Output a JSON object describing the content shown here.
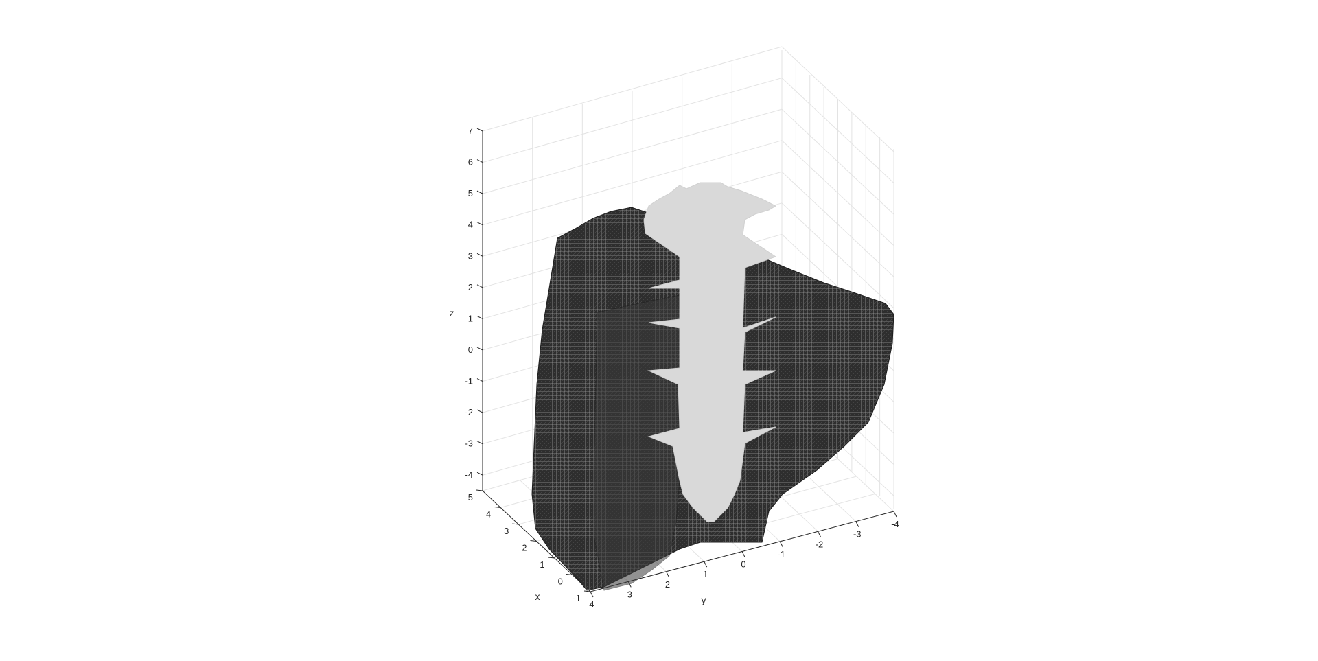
{
  "chart_data": {
    "type": "3d-voxel",
    "xlabel": "x",
    "ylabel": "y",
    "zlabel": "z",
    "x_ticks": [
      5,
      4,
      3,
      2,
      1,
      0,
      -1
    ],
    "y_ticks": [
      4,
      3,
      2,
      1,
      0,
      -1,
      -2,
      -3,
      -4
    ],
    "z_ticks": [
      7,
      6,
      5,
      4,
      3,
      2,
      1,
      0,
      -1,
      -2,
      -3,
      -4
    ],
    "xlim": [
      -1,
      5
    ],
    "ylim": [
      -4.5,
      4.5
    ],
    "zlim": [
      -4.5,
      7
    ],
    "grid": true,
    "series": [
      {
        "kind": "voxel-mesh",
        "color": "#2b2b2b",
        "edge_color": "#ffffff"
      },
      {
        "kind": "solid-section",
        "color": "#d9d9d9"
      }
    ]
  }
}
